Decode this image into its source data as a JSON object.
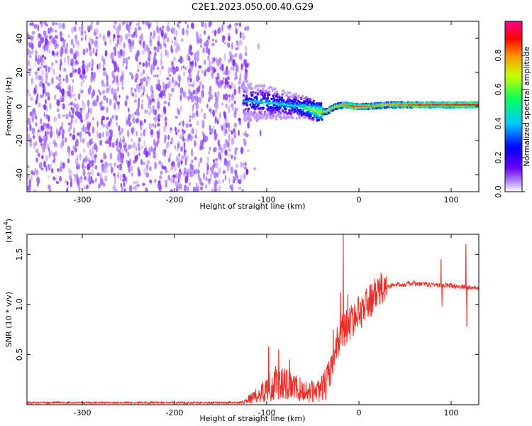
{
  "title": "C2E1.2023.050.00.40.G29",
  "chart_data": [
    {
      "type": "heatmap",
      "xlabel": "Height of straight line (km)",
      "ylabel": "Frequency (Hz)",
      "xlim": [
        -360,
        130
      ],
      "ylim": [
        -50,
        50
      ],
      "xticks": [
        -300,
        -200,
        -100,
        0,
        100
      ],
      "yticks": [
        -40,
        -20,
        0,
        20,
        40
      ],
      "colorbar": {
        "label": "Normalized spectral amplitude",
        "range": [
          0.0,
          1.0
        ],
        "ticks": [
          0.0,
          0.2,
          0.4,
          0.6,
          0.8
        ],
        "colors": [
          "#ffffff",
          "#6a00ff",
          "#0000ff",
          "#00d0ff",
          "#00ff60",
          "#c8ff00",
          "#ff8000",
          "#ff0000",
          "#ff00a0"
        ]
      },
      "noise_region": {
        "x_range": [
          -360,
          -120
        ],
        "freq_range": [
          -50,
          50
        ],
        "amplitude_range": [
          0.05,
          0.12
        ]
      },
      "signal_track": [
        {
          "x": -125,
          "freq": 3,
          "amp": 0.35
        },
        {
          "x": -110,
          "freq": 3,
          "amp": 0.4
        },
        {
          "x": -95,
          "freq": 2,
          "amp": 0.42
        },
        {
          "x": -80,
          "freq": 1,
          "amp": 0.42
        },
        {
          "x": -65,
          "freq": 0,
          "amp": 0.45
        },
        {
          "x": -55,
          "freq": -1,
          "amp": 0.55
        },
        {
          "x": -45,
          "freq": -3,
          "amp": 0.7
        },
        {
          "x": -35,
          "freq": -3,
          "amp": 0.75
        },
        {
          "x": -25,
          "freq": 0,
          "amp": 0.7
        },
        {
          "x": -15,
          "freq": 1,
          "amp": 0.8
        },
        {
          "x": -5,
          "freq": 0,
          "amp": 0.85
        },
        {
          "x": 0,
          "freq": 0,
          "amp": 0.85
        },
        {
          "x": 10,
          "freq": 0,
          "amp": 0.8
        },
        {
          "x": 30,
          "freq": 1,
          "amp": 0.75
        },
        {
          "x": 60,
          "freq": 1,
          "amp": 0.85
        },
        {
          "x": 90,
          "freq": 1,
          "amp": 0.85
        },
        {
          "x": 115,
          "freq": 1,
          "amp": 0.9
        },
        {
          "x": 130,
          "freq": 1,
          "amp": 0.9
        }
      ]
    },
    {
      "type": "line",
      "xlabel": "Height of straight line (km)",
      "ylabel": "SNR (10 * v/v)",
      "y_multiplier_label": "(x10",
      "y_multiplier_exp": "4",
      "y_multiplier_close": ")",
      "xlim": [
        -360,
        130
      ],
      "ylim": [
        0,
        1.7
      ],
      "xticks": [
        -300,
        -200,
        -100,
        0,
        100
      ],
      "yticks": [
        0.5,
        1.0,
        1.5
      ],
      "ytick_labels": [
        "0.5",
        "1.0",
        "1.5"
      ],
      "color": "#e8302a",
      "series": [
        {
          "x": [
            -360,
            -300,
            -200,
            -130,
            -120,
            -110,
            -100,
            -90,
            -80,
            -70,
            -60,
            -50,
            -40,
            -30,
            -25,
            -20,
            -15,
            -10,
            -5,
            0,
            10,
            20,
            30,
            40,
            50,
            60,
            70,
            80,
            90,
            100,
            110,
            116,
            120,
            130
          ],
          "values": [
            0.02,
            0.02,
            0.02,
            0.02,
            0.04,
            0.07,
            0.12,
            0.16,
            0.15,
            0.13,
            0.1,
            0.1,
            0.12,
            0.3,
            0.55,
            0.7,
            0.75,
            0.8,
            0.85,
            0.9,
            1.0,
            1.1,
            1.17,
            1.2,
            1.2,
            1.21,
            1.2,
            1.2,
            1.19,
            1.19,
            1.18,
            1.17,
            1.17,
            1.17
          ]
        }
      ],
      "spikes": [
        {
          "x": -98,
          "value": 0.58
        },
        {
          "x": -87,
          "value": 0.55
        },
        {
          "x": -75,
          "value": 0.45
        },
        {
          "x": -28,
          "value": 0.75
        },
        {
          "x": -20,
          "value": 1.12
        },
        {
          "x": -17,
          "value": 1.7
        },
        {
          "x": -12,
          "value": 1.1
        },
        {
          "x": 89,
          "value": 1.45
        },
        {
          "x": 90,
          "value": 0.98
        },
        {
          "x": 116,
          "value": 1.6
        },
        {
          "x": 117,
          "value": 0.78
        }
      ]
    }
  ]
}
